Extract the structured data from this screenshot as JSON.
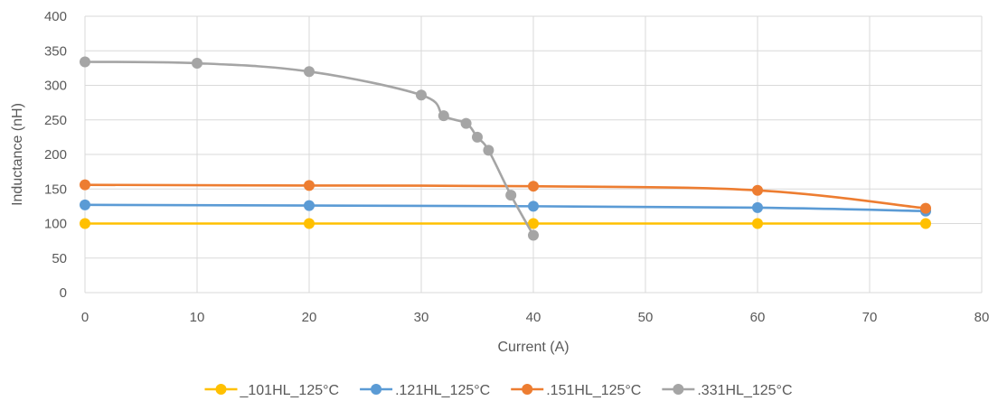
{
  "chart_data": {
    "type": "line",
    "title": "",
    "xlabel": "Current (A)",
    "ylabel": "Inductance (nH)",
    "xlim": [
      0,
      80
    ],
    "ylim": [
      0,
      400
    ],
    "x_ticks": [
      0,
      10,
      20,
      30,
      40,
      50,
      60,
      70,
      80
    ],
    "y_ticks": [
      0,
      50,
      100,
      150,
      200,
      250,
      300,
      350,
      400
    ],
    "grid": true,
    "legend_position": "bottom",
    "series": [
      {
        "name": "_101HL_125°C",
        "color": "#FFC000",
        "x": [
          0,
          20,
          40,
          60,
          75
        ],
        "y": [
          100,
          100,
          100,
          100,
          100
        ]
      },
      {
        "name": ".121HL_125°C",
        "color": "#5B9BD5",
        "x": [
          0,
          20,
          40,
          60,
          75
        ],
        "y": [
          127,
          126,
          125,
          123,
          118
        ]
      },
      {
        "name": ".151HL_125°C",
        "color": "#ED7D31",
        "x": [
          0,
          20,
          40,
          60,
          75
        ],
        "y": [
          156,
          155,
          154,
          148,
          122
        ]
      },
      {
        "name": ".331HL_125°C",
        "color": "#A5A5A5",
        "x": [
          0,
          10,
          20,
          30,
          32,
          34,
          35,
          36,
          38,
          40
        ],
        "y": [
          334,
          332,
          320,
          286,
          256,
          245,
          225,
          206,
          141,
          83
        ]
      }
    ]
  }
}
